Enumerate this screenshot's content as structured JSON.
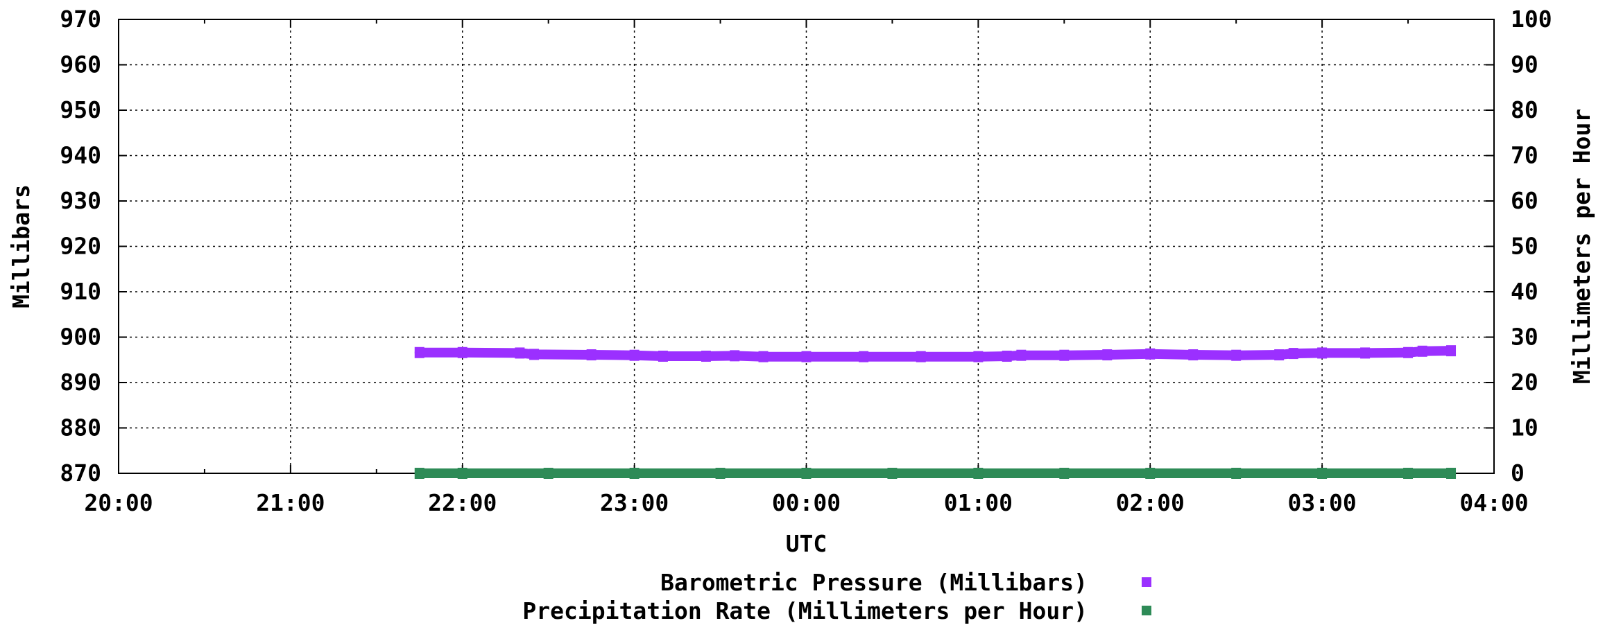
{
  "chart_data": {
    "type": "scatter",
    "title": "",
    "xlabel": "UTC",
    "ylabel": "Millibars",
    "y2label": "Millimeters per Hour",
    "x_range": [
      "20:00",
      "04:00"
    ],
    "x_ticks": [
      "20:00",
      "21:00",
      "22:00",
      "23:00",
      "00:00",
      "01:00",
      "02:00",
      "03:00",
      "04:00"
    ],
    "ylim": [
      870,
      970
    ],
    "y_ticks": [
      "870",
      "880",
      "890",
      "900",
      "910",
      "920",
      "930",
      "940",
      "950",
      "960",
      "970"
    ],
    "y2lim": [
      0,
      100
    ],
    "y2_ticks": [
      "0",
      "10",
      "20",
      "30",
      "40",
      "50",
      "60",
      "70",
      "80",
      "90",
      "100"
    ],
    "grid": true,
    "legend_position": "bottom-center",
    "series": [
      {
        "name": "Barometric Pressure (Millibars)",
        "axis": "left",
        "color": "#9b30ff",
        "points": [
          [
            "21:45",
            896.6
          ],
          [
            "22:00",
            896.6
          ],
          [
            "22:20",
            896.5
          ],
          [
            "22:25",
            896.2
          ],
          [
            "22:45",
            896.1
          ],
          [
            "23:00",
            896.0
          ],
          [
            "23:10",
            895.8
          ],
          [
            "23:25",
            895.8
          ],
          [
            "23:35",
            895.9
          ],
          [
            "23:45",
            895.7
          ],
          [
            "00:00",
            895.7
          ],
          [
            "00:20",
            895.7
          ],
          [
            "00:40",
            895.7
          ],
          [
            "01:00",
            895.7
          ],
          [
            "01:10",
            895.8
          ],
          [
            "01:15",
            896.0
          ],
          [
            "01:30",
            896.0
          ],
          [
            "01:45",
            896.1
          ],
          [
            "02:00",
            896.3
          ],
          [
            "02:15",
            896.1
          ],
          [
            "02:30",
            896.0
          ],
          [
            "02:45",
            896.1
          ],
          [
            "02:50",
            896.4
          ],
          [
            "03:00",
            896.5
          ],
          [
            "03:15",
            896.5
          ],
          [
            "03:30",
            896.6
          ],
          [
            "03:35",
            896.9
          ],
          [
            "03:45",
            897.0
          ]
        ]
      },
      {
        "name": "Precipitation Rate (Millimeters per Hour)",
        "axis": "right",
        "color": "#2e8b57",
        "points": [
          [
            "21:45",
            0
          ],
          [
            "22:00",
            0
          ],
          [
            "22:30",
            0
          ],
          [
            "23:00",
            0
          ],
          [
            "23:30",
            0
          ],
          [
            "00:00",
            0
          ],
          [
            "00:30",
            0
          ],
          [
            "01:00",
            0
          ],
          [
            "01:30",
            0
          ],
          [
            "02:00",
            0
          ],
          [
            "02:30",
            0
          ],
          [
            "03:00",
            0
          ],
          [
            "03:30",
            0
          ],
          [
            "03:45",
            0
          ]
        ]
      }
    ]
  }
}
